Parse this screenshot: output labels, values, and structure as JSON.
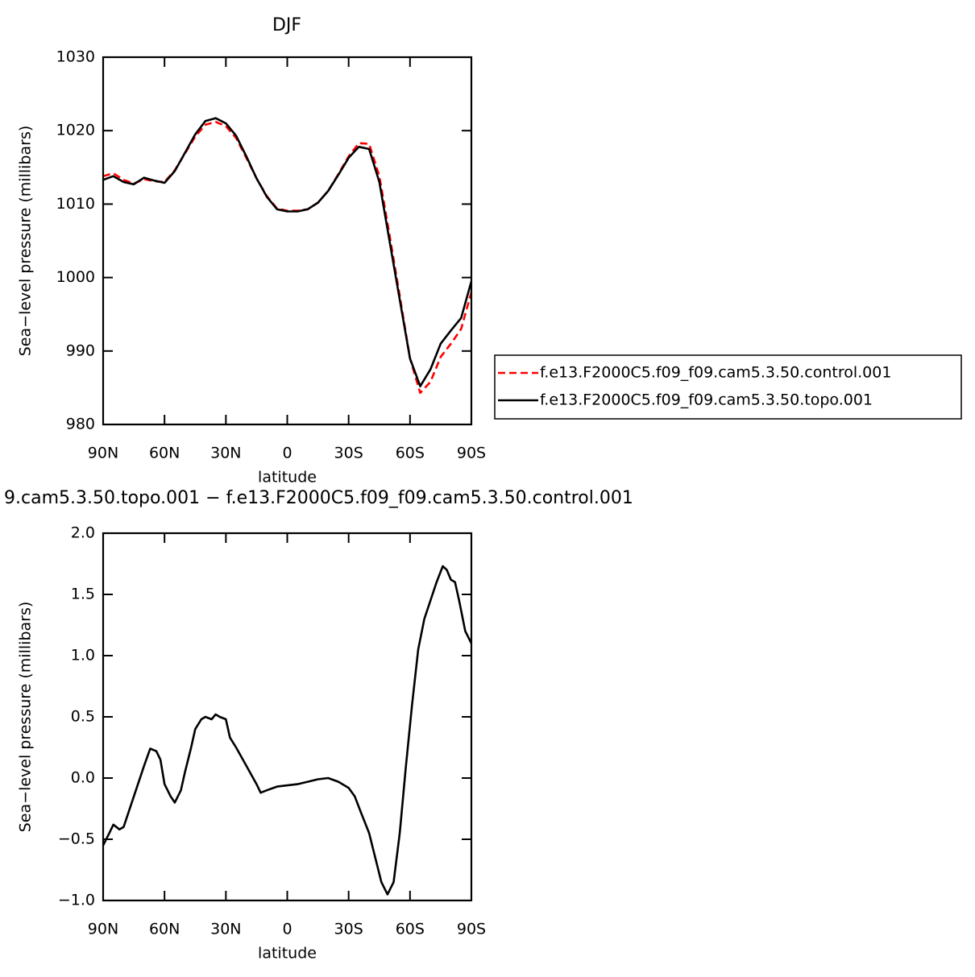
{
  "chart_data": [
    {
      "type": "line",
      "title": "DJF",
      "xlabel": "latitude",
      "ylabel": "Sea−level pressure (millibars)",
      "x": [
        90,
        85,
        80,
        75,
        70,
        65,
        60,
        55,
        50,
        45,
        40,
        35,
        30,
        25,
        20,
        15,
        10,
        5,
        0,
        -5,
        -10,
        -15,
        -20,
        -25,
        -30,
        -35,
        -40,
        -45,
        -50,
        -55,
        -60,
        -65,
        -70,
        -75,
        -80,
        -85,
        -90
      ],
      "series": [
        {
          "name": "f.e13.F2000C5.f09_f09.cam5.3.50.control.001",
          "color": "#ff0000",
          "dash": true,
          "values": [
            1013.8,
            1014.2,
            1013.3,
            1012.8,
            1013.4,
            1013.1,
            1013,
            1014.6,
            1016.9,
            1019.2,
            1020.8,
            1021.2,
            1020.6,
            1019,
            1016.3,
            1013.5,
            1011.1,
            1009.4,
            1009.1,
            1009.1,
            1009.3,
            1010.2,
            1011.8,
            1014.1,
            1016.5,
            1018.3,
            1018.2,
            1013.8,
            1005.8,
            997.5,
            989,
            984.3,
            985.8,
            989.2,
            991,
            993,
            998
          ]
        },
        {
          "name": "f.e13.F2000C5.f09_f09.cam5.3.50.topo.001",
          "color": "#000000",
          "dash": false,
          "values": [
            1013.3,
            1013.8,
            1013,
            1012.7,
            1013.6,
            1013.2,
            1012.9,
            1014.5,
            1017,
            1019.5,
            1021.3,
            1021.7,
            1021,
            1019.3,
            1016.5,
            1013.5,
            1011,
            1009.3,
            1009,
            1009,
            1009.3,
            1010.2,
            1011.8,
            1014,
            1016.3,
            1017.8,
            1017.5,
            1013,
            1005,
            997,
            989,
            985.2,
            987.5,
            991,
            992.8,
            994.5,
            999.5
          ]
        }
      ],
      "xlim": [
        90,
        -90
      ],
      "xticks": [
        {
          "value": 90,
          "label": "90N"
        },
        {
          "value": 60,
          "label": "60N"
        },
        {
          "value": 30,
          "label": "30N"
        },
        0,
        {
          "value": -30,
          "label": "30S"
        },
        {
          "value": -60,
          "label": "60S"
        },
        {
          "value": -90,
          "label": "90S"
        }
      ],
      "ylim": [
        980,
        1030
      ],
      "yticks": [
        980,
        990,
        1000,
        1010,
        1020,
        1030
      ],
      "legend": "right"
    },
    {
      "type": "line",
      "title": "9.cam5.3.50.topo.001 − f.e13.F2000C5.f09_f09.cam5.3.50.control.001",
      "xlabel": "latitude",
      "ylabel": "Sea−level pressure (millibars)",
      "x": [
        90,
        87,
        85,
        82,
        80,
        75,
        70,
        67,
        64,
        62,
        60,
        57,
        55,
        52,
        50,
        47,
        45,
        42,
        40,
        37,
        35,
        33,
        30,
        28,
        25,
        20,
        15,
        13,
        10,
        5,
        0,
        -5,
        -10,
        -15,
        -20,
        -25,
        -30,
        -33,
        -36,
        -40,
        -43,
        -46,
        -49,
        -52,
        -55,
        -58,
        -61,
        -64,
        -67,
        -70,
        -73,
        -76,
        -78,
        -80,
        -82,
        -84,
        -87,
        -90
      ],
      "series": [
        {
          "color": "#000000",
          "dash": false,
          "values": [
            -0.55,
            -0.45,
            -0.38,
            -0.42,
            -0.4,
            -0.15,
            0.1,
            0.24,
            0.22,
            0.15,
            -0.05,
            -0.15,
            -0.2,
            -0.1,
            0.05,
            0.25,
            0.4,
            0.48,
            0.5,
            0.48,
            0.52,
            0.5,
            0.48,
            0.33,
            0.25,
            0.1,
            -0.05,
            -0.12,
            -0.1,
            -0.07,
            -0.06,
            -0.05,
            -0.03,
            -0.01,
            0,
            -0.03,
            -0.08,
            -0.15,
            -0.28,
            -0.45,
            -0.65,
            -0.85,
            -0.95,
            -0.85,
            -0.45,
            0.1,
            0.6,
            1.05,
            1.3,
            1.45,
            1.6,
            1.73,
            1.7,
            1.62,
            1.6,
            1.45,
            1.2,
            1.1
          ]
        }
      ],
      "xlim": [
        90,
        -90
      ],
      "xticks": [
        {
          "value": 90,
          "label": "90N"
        },
        {
          "value": 60,
          "label": "60N"
        },
        {
          "value": 30,
          "label": "30N"
        },
        0,
        {
          "value": -30,
          "label": "30S"
        },
        {
          "value": -60,
          "label": "60S"
        },
        {
          "value": -90,
          "label": "90S"
        }
      ],
      "ylim": [
        -1,
        2
      ],
      "yticks": [
        {
          "value": -1,
          "label": "−1.0"
        },
        {
          "value": -0.5,
          "label": "−0.5"
        },
        {
          "value": 0,
          "label": "0.0"
        },
        0.5,
        {
          "value": 1,
          "label": "1.0"
        },
        1.5,
        {
          "value": 2,
          "label": "2.0"
        }
      ]
    }
  ]
}
